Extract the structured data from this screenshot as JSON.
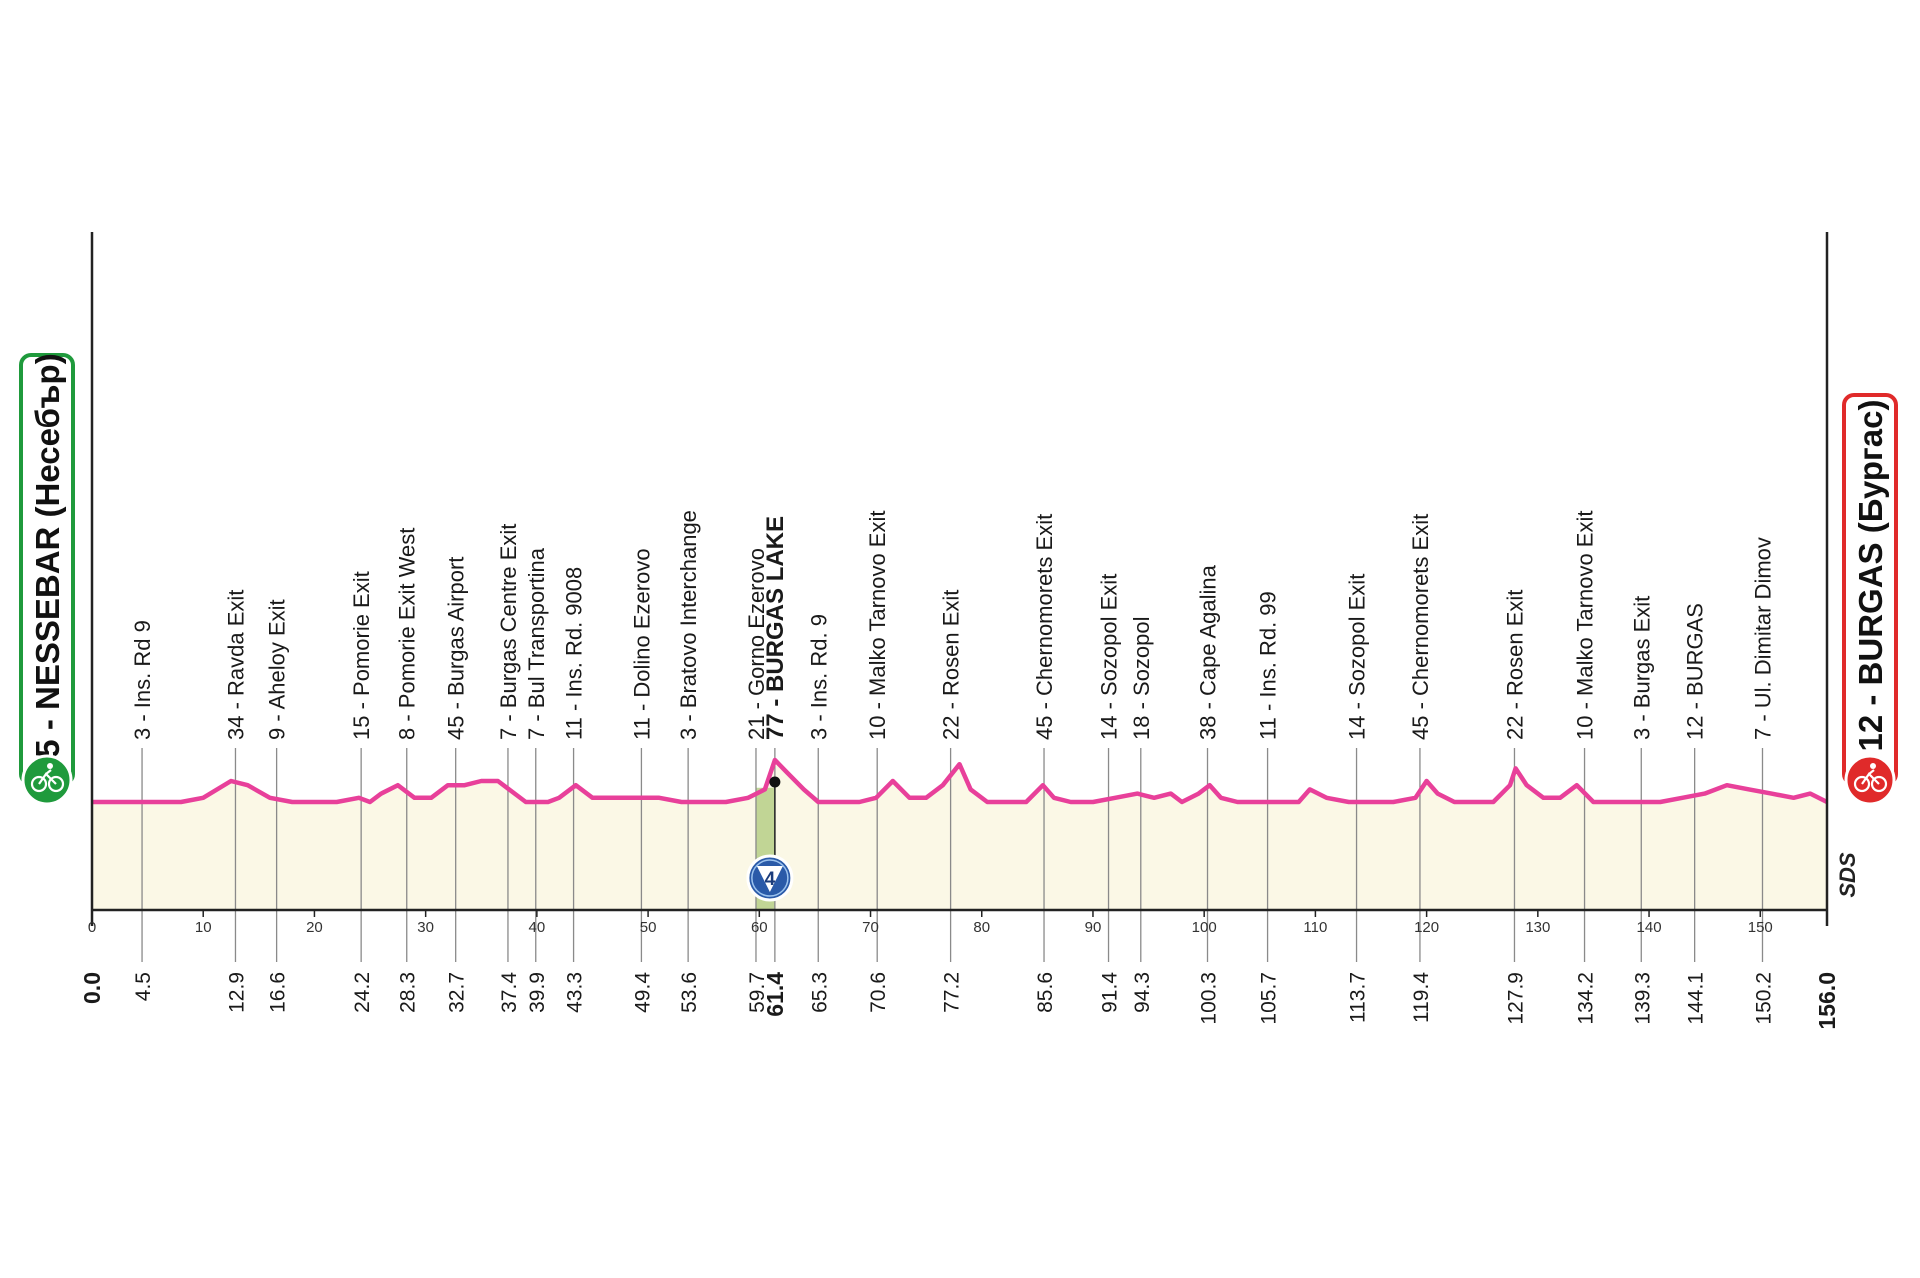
{
  "chart_data": {
    "type": "area",
    "distance_range": [
      0,
      156
    ],
    "axis_ticks": [
      0,
      10,
      20,
      30,
      40,
      50,
      60,
      70,
      80,
      90,
      100,
      110,
      120,
      130,
      140,
      150
    ],
    "start": {
      "name": "5 - NESSEBAR (Несебър)",
      "km": "0.0"
    },
    "finish": {
      "name": "12 - BURGAS (Бургас)",
      "km": "156.0"
    },
    "sprint": {
      "km": 61.4,
      "badge": "4"
    },
    "waypoints": [
      {
        "km": 4.5,
        "km_label": "4.5",
        "label": "3 - Ins. Rd 9"
      },
      {
        "km": 12.9,
        "km_label": "12.9",
        "label": "34 - Ravda Exit"
      },
      {
        "km": 16.6,
        "km_label": "16.6",
        "label": "9 - Aheloy Exit"
      },
      {
        "km": 24.2,
        "km_label": "24.2",
        "label": "15 - Pomorie Exit"
      },
      {
        "km": 28.3,
        "km_label": "28.3",
        "label": "8 - Pomorie Exit West"
      },
      {
        "km": 32.7,
        "km_label": "32.7",
        "label": "45 - Burgas Airport"
      },
      {
        "km": 37.4,
        "km_label": "37.4",
        "label": "7 - Burgas Centre Exit"
      },
      {
        "km": 39.9,
        "km_label": "39.9",
        "label": "7 - Bul Transportina"
      },
      {
        "km": 43.3,
        "km_label": "43.3",
        "label": "11 - Ins. Rd. 9008"
      },
      {
        "km": 49.4,
        "km_label": "49.4",
        "label": "11 - Dolino Ezerovo"
      },
      {
        "km": 53.6,
        "km_label": "53.6",
        "label": "3 - Bratovo Interchange"
      },
      {
        "km": 59.7,
        "km_label": "59.7",
        "label": "21 - Gorno Ezerovo"
      },
      {
        "km": 61.4,
        "km_label": "61.4",
        "label": "77 - BURGAS LAKE",
        "bold": true
      },
      {
        "km": 65.3,
        "km_label": "65.3",
        "label": "3 - Ins. Rd. 9"
      },
      {
        "km": 70.6,
        "km_label": "70.6",
        "label": "10 - Malko Tarnovo Exit"
      },
      {
        "km": 77.2,
        "km_label": "77.2",
        "label": "22 - Rosen Exit"
      },
      {
        "km": 85.6,
        "km_label": "85.6",
        "label": "45 - Chernomorets Exit"
      },
      {
        "km": 91.4,
        "km_label": "91.4",
        "label": "14 - Sozopol Exit"
      },
      {
        "km": 94.3,
        "km_label": "94.3",
        "label": "18 - Sozopol"
      },
      {
        "km": 100.3,
        "km_label": "100.3",
        "label": "38 - Cape Agalina"
      },
      {
        "km": 105.7,
        "km_label": "105.7",
        "label": "11 - Ins. Rd. 99"
      },
      {
        "km": 113.7,
        "km_label": "113.7",
        "label": "14 - Sozopol Exit"
      },
      {
        "km": 119.4,
        "km_label": "119.4",
        "label": "45 - Chernomorets Exit"
      },
      {
        "km": 127.9,
        "km_label": "127.9",
        "label": "22 - Rosen Exit"
      },
      {
        "km": 134.2,
        "km_label": "134.2",
        "label": "10 - Malko Tarnovo Exit"
      },
      {
        "km": 139.3,
        "km_label": "139.3",
        "label": "3 - Burgas Exit"
      },
      {
        "km": 144.1,
        "km_label": "144.1",
        "label": "12 - BURGAS"
      },
      {
        "km": 150.2,
        "km_label": "150.2",
        "label": "7 - Ul. Dimitar Dimov"
      }
    ],
    "profile": [
      [
        0,
        5
      ],
      [
        5,
        5
      ],
      [
        8,
        5
      ],
      [
        10,
        6
      ],
      [
        12.5,
        10
      ],
      [
        14,
        9
      ],
      [
        16,
        6
      ],
      [
        18,
        5
      ],
      [
        20,
        5
      ],
      [
        22,
        5
      ],
      [
        24,
        6
      ],
      [
        25,
        5
      ],
      [
        26,
        7
      ],
      [
        27.5,
        9
      ],
      [
        29,
        6
      ],
      [
        30.5,
        6
      ],
      [
        32,
        9
      ],
      [
        33.5,
        9
      ],
      [
        35,
        10
      ],
      [
        36.5,
        10
      ],
      [
        37.5,
        8
      ],
      [
        39,
        5
      ],
      [
        41,
        5
      ],
      [
        42,
        6
      ],
      [
        43.5,
        9
      ],
      [
        45,
        6
      ],
      [
        47,
        6
      ],
      [
        49,
        6
      ],
      [
        51,
        6
      ],
      [
        53,
        5
      ],
      [
        55,
        5
      ],
      [
        57,
        5
      ],
      [
        59,
        6
      ],
      [
        60.5,
        8
      ],
      [
        61.4,
        15
      ],
      [
        62.5,
        12
      ],
      [
        64,
        8
      ],
      [
        65.3,
        5
      ],
      [
        67,
        5
      ],
      [
        69,
        5
      ],
      [
        70.5,
        6
      ],
      [
        72,
        10
      ],
      [
        73.5,
        6
      ],
      [
        75,
        6
      ],
      [
        76.5,
        9
      ],
      [
        78,
        14
      ],
      [
        79,
        8
      ],
      [
        80.5,
        5
      ],
      [
        82,
        5
      ],
      [
        84,
        5
      ],
      [
        85.5,
        9
      ],
      [
        86.5,
        6
      ],
      [
        88,
        5
      ],
      [
        90,
        5
      ],
      [
        92,
        6
      ],
      [
        94,
        7
      ],
      [
        95.5,
        6
      ],
      [
        97,
        7
      ],
      [
        98,
        5
      ],
      [
        99.5,
        7
      ],
      [
        100.5,
        9
      ],
      [
        101.5,
        6
      ],
      [
        103,
        5
      ],
      [
        105,
        5
      ],
      [
        107,
        5
      ],
      [
        108.5,
        5
      ],
      [
        109.5,
        8
      ],
      [
        111,
        6
      ],
      [
        113,
        5
      ],
      [
        115,
        5
      ],
      [
        117,
        5
      ],
      [
        119,
        6
      ],
      [
        120,
        10
      ],
      [
        121,
        7
      ],
      [
        122.5,
        5
      ],
      [
        124,
        5
      ],
      [
        126,
        5
      ],
      [
        127.5,
        9
      ],
      [
        128,
        13
      ],
      [
        129,
        9
      ],
      [
        130.5,
        6
      ],
      [
        132,
        6
      ],
      [
        133.5,
        9
      ],
      [
        135,
        5
      ],
      [
        137,
        5
      ],
      [
        139,
        5
      ],
      [
        141,
        5
      ],
      [
        143,
        6
      ],
      [
        145,
        7
      ],
      [
        147,
        9
      ],
      [
        149,
        8
      ],
      [
        151,
        7
      ],
      [
        153,
        6
      ],
      [
        154.5,
        7
      ],
      [
        156,
        5
      ]
    ]
  },
  "logo": {
    "text": "SDS"
  }
}
